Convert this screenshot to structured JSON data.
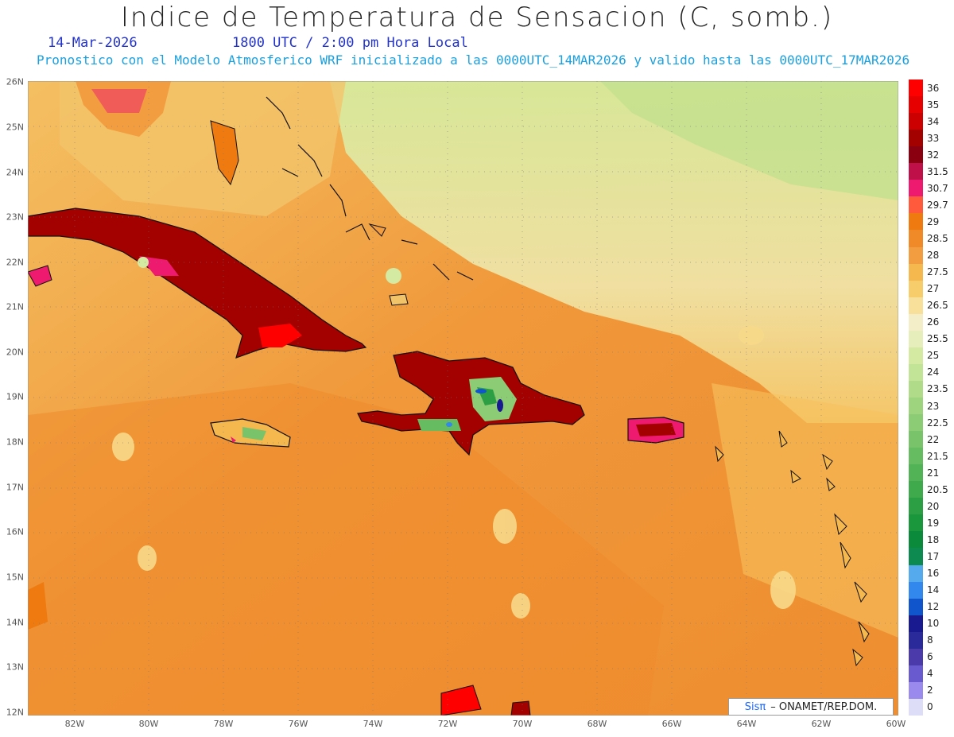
{
  "header": {
    "title": "Indice de Temperatura de Sensacion (C, somb.)",
    "date": "14-Mar-2026",
    "time": "1800 UTC / 2:00 pm Hora Local",
    "model_line": "Pronostico con el Modelo Atmosferico WRF inicializado a las 0000UTC_14MAR2026 y valido hasta las  0000UTC_17MAR2026"
  },
  "axes": {
    "lat_labels": [
      "26N",
      "25N",
      "24N",
      "23N",
      "22N",
      "21N",
      "20N",
      "19N",
      "18N",
      "17N",
      "16N",
      "15N",
      "14N",
      "13N",
      "12N"
    ],
    "lon_labels": [
      "82W",
      "80W",
      "78W",
      "76W",
      "74W",
      "72W",
      "70W",
      "68W",
      "66W",
      "64W",
      "62W",
      "60W"
    ]
  },
  "legend": {
    "labels": [
      "36",
      "35",
      "34",
      "33",
      "32",
      "31.5",
      "30.7",
      "29.7",
      "29",
      "28.5",
      "28",
      "27.5",
      "27",
      "26.5",
      "26",
      "25.5",
      "25",
      "24",
      "23.5",
      "23",
      "22.5",
      "22",
      "21.5",
      "21",
      "20.5",
      "20",
      "19",
      "18",
      "17",
      "16",
      "14",
      "12",
      "10",
      "8",
      "6",
      "4",
      "2",
      "0"
    ],
    "colors": [
      "#ff0000",
      "#e60000",
      "#cc0000",
      "#a30000",
      "#8a0010",
      "#c0104a",
      "#ee1a70",
      "#ff5a3c",
      "#ee7a10",
      "#f08a28",
      "#f29e40",
      "#f5b84e",
      "#f7cc6a",
      "#f9e09a",
      "#f3edc8",
      "#e6eebc",
      "#d4eaa2",
      "#c2e496",
      "#b0dc8a",
      "#9fd47e",
      "#8ccc74",
      "#79c46a",
      "#66bc60",
      "#52b356",
      "#3faa4c",
      "#2c9f44",
      "#1a963c",
      "#0a8a3a",
      "#0c8a50",
      "#55aaee",
      "#3388ee",
      "#1155cc",
      "#1a1a90",
      "#2a2a9a",
      "#4a3aaa",
      "#6a5ad0",
      "#9a8aee",
      "#ddddf8"
    ]
  },
  "credit": {
    "brand": "Sisπ",
    "org": "– ONAMET/REP.DOM."
  }
}
